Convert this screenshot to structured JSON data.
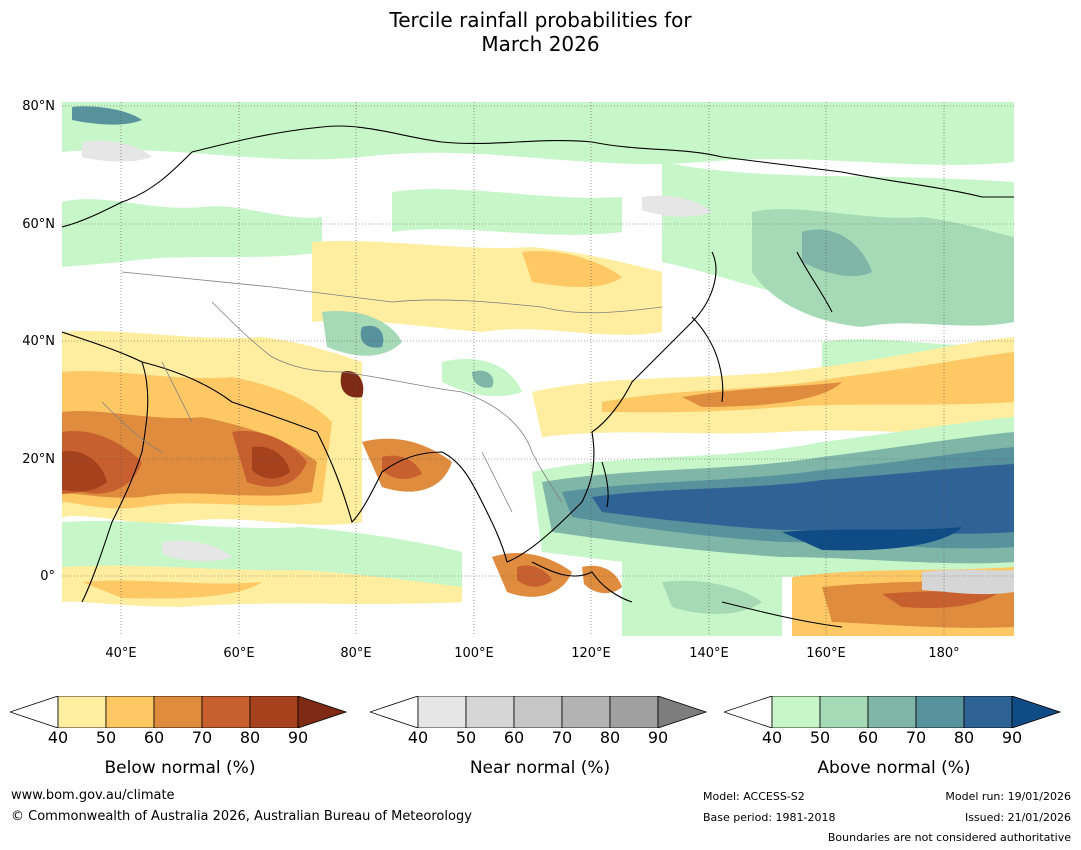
{
  "title_line1": "Tercile rainfall probabilities for",
  "title_line2": "March 2026",
  "map": {
    "lat_labels": [
      "80°N",
      "60°N",
      "40°N",
      "20°N",
      "0°"
    ],
    "lon_labels": [
      "40°E",
      "60°E",
      "80°E",
      "100°E",
      "120°E",
      "140°E",
      "160°E",
      "180°"
    ],
    "extent": {
      "lon_min": 30,
      "lon_max": 192,
      "lat_min": -10,
      "lat_max": 81
    }
  },
  "colorbars": [
    {
      "title": "Below normal (%)",
      "ticks": [
        "40",
        "50",
        "60",
        "70",
        "80",
        "90"
      ],
      "colors": [
        "#ffffff",
        "#ffeda0",
        "#fec965",
        "#e08c3e",
        "#c75f2e",
        "#a6411e",
        "#7e2a14"
      ]
    },
    {
      "title": "Near normal (%)",
      "ticks": [
        "40",
        "50",
        "60",
        "70",
        "80",
        "90"
      ],
      "colors": [
        "#ffffff",
        "#e6e6e6",
        "#d6d6d6",
        "#c6c6c6",
        "#b3b3b3",
        "#a0a0a0",
        "#7d7d7d"
      ]
    },
    {
      "title": "Above normal (%)",
      "ticks": [
        "40",
        "50",
        "60",
        "70",
        "80",
        "90"
      ],
      "colors": [
        "#ffffff",
        "#c7f7c9",
        "#a6d9b6",
        "#7fb6a8",
        "#58929c",
        "#2f6395",
        "#0f4c86"
      ]
    }
  ],
  "footer": {
    "url": "www.bom.gov.au/climate",
    "copyright": "© Commonwealth of Australia 2026, Australian Bureau of Meteorology",
    "model": "Model: ACCESS-S2",
    "base_period": "Base period: 1981-2018",
    "model_run": "Model run: 19/01/2026",
    "issued": "Issued: 21/01/2026",
    "disclaimer": "Boundaries are not considered authoritative"
  }
}
